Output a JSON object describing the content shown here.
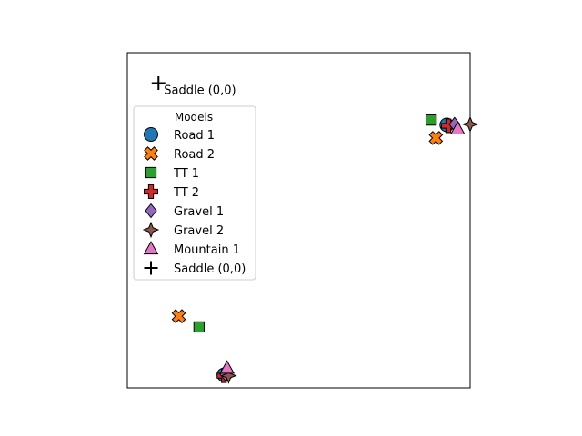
{
  "chart_data": {
    "type": "scatter",
    "title": "",
    "xlabel": "",
    "ylabel": "",
    "grid": false,
    "xticks": [],
    "yticks": [],
    "xlim": [
      -0.1,
      1.0
    ],
    "ylim": [
      -1.0,
      0.1
    ],
    "legend": {
      "title": "Models",
      "position": "upper-left"
    },
    "annotations": [
      {
        "text": "Saddle (0,0)",
        "x": 0.0,
        "y": 0.0
      }
    ],
    "series": [
      {
        "name": "Road 1",
        "marker": "circle",
        "color": "#1f77b4",
        "points": [
          {
            "x": 0.925,
            "y": -0.137
          },
          {
            "x": 0.21,
            "y": -0.957
          }
        ]
      },
      {
        "name": "Road 2",
        "marker": "x-filled",
        "color": "#ff7f0e",
        "points": [
          {
            "x": 0.89,
            "y": -0.18
          },
          {
            "x": 0.065,
            "y": -0.765
          }
        ]
      },
      {
        "name": "TT 1",
        "marker": "square",
        "color": "#2ca02c",
        "points": [
          {
            "x": 0.875,
            "y": -0.121
          },
          {
            "x": 0.13,
            "y": -0.8
          }
        ]
      },
      {
        "name": "TT 2",
        "marker": "plus-filled",
        "color": "#d62728",
        "points": [
          {
            "x": 0.93,
            "y": -0.14
          },
          {
            "x": 0.21,
            "y": -0.96
          }
        ]
      },
      {
        "name": "Gravel 1",
        "marker": "diamond",
        "color": "#9467bd",
        "points": [
          {
            "x": 0.95,
            "y": -0.135
          },
          {
            "x": 0.215,
            "y": -0.955
          }
        ]
      },
      {
        "name": "Gravel 2",
        "marker": "star4",
        "color": "#8c564b",
        "points": [
          {
            "x": 1.0,
            "y": -0.135
          },
          {
            "x": 0.225,
            "y": -0.96
          }
        ]
      },
      {
        "name": "Mountain 1",
        "marker": "triangle",
        "color": "#e377c2",
        "points": [
          {
            "x": 0.96,
            "y": -0.15
          },
          {
            "x": 0.22,
            "y": -0.935
          }
        ]
      },
      {
        "name": "Saddle (0,0)",
        "marker": "plus-thin",
        "color": "#000000",
        "points": [
          {
            "x": 0.0,
            "y": 0.0
          }
        ]
      }
    ]
  }
}
